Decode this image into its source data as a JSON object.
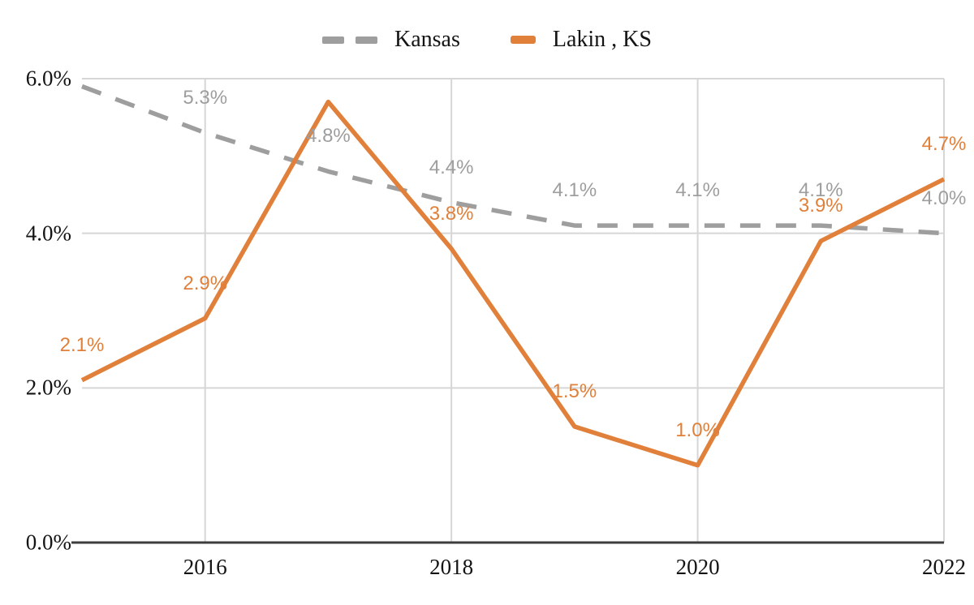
{
  "chart_data": {
    "type": "line",
    "title": "",
    "x": [
      2015,
      2016,
      2017,
      2018,
      2019,
      2020,
      2021,
      2022
    ],
    "x_ticks": [
      {
        "year": 2016,
        "label": "2016"
      },
      {
        "year": 2018,
        "label": "2018"
      },
      {
        "year": 2020,
        "label": "2020"
      },
      {
        "year": 2022,
        "label": "2022"
      }
    ],
    "y_ticks": [
      {
        "value": 6,
        "label": "6.0%"
      },
      {
        "value": 4,
        "label": "4.0%"
      },
      {
        "value": 2,
        "label": "2.0%"
      },
      {
        "value": 0,
        "label": "0.0%"
      }
    ],
    "ylim": [
      0,
      6
    ],
    "grid": true,
    "legend_position": "top",
    "series": [
      {
        "name": "Kansas",
        "style": "dashed",
        "color": "#9e9e9e",
        "values": [
          5.9,
          5.3,
          4.8,
          4.4,
          4.1,
          4.1,
          4.1,
          4.0
        ],
        "labels": [
          null,
          "5.3%",
          "4.8%",
          "4.4%",
          "4.1%",
          "4.1%",
          "4.1%",
          "4.0%"
        ]
      },
      {
        "name": "Lakin , KS",
        "style": "solid",
        "color": "#e0803a",
        "values": [
          2.1,
          2.9,
          5.7,
          3.8,
          1.5,
          1.0,
          3.9,
          4.7
        ],
        "labels": [
          "2.1%",
          "2.9%",
          null,
          "3.8%",
          "1.5%",
          "1.0%",
          "3.9%",
          "4.7%"
        ]
      }
    ]
  },
  "colors": {
    "background": "#ffffff",
    "gridline": "#d6d6d6",
    "axis_line": "#3d3d3d",
    "tick_label": "#141414"
  }
}
